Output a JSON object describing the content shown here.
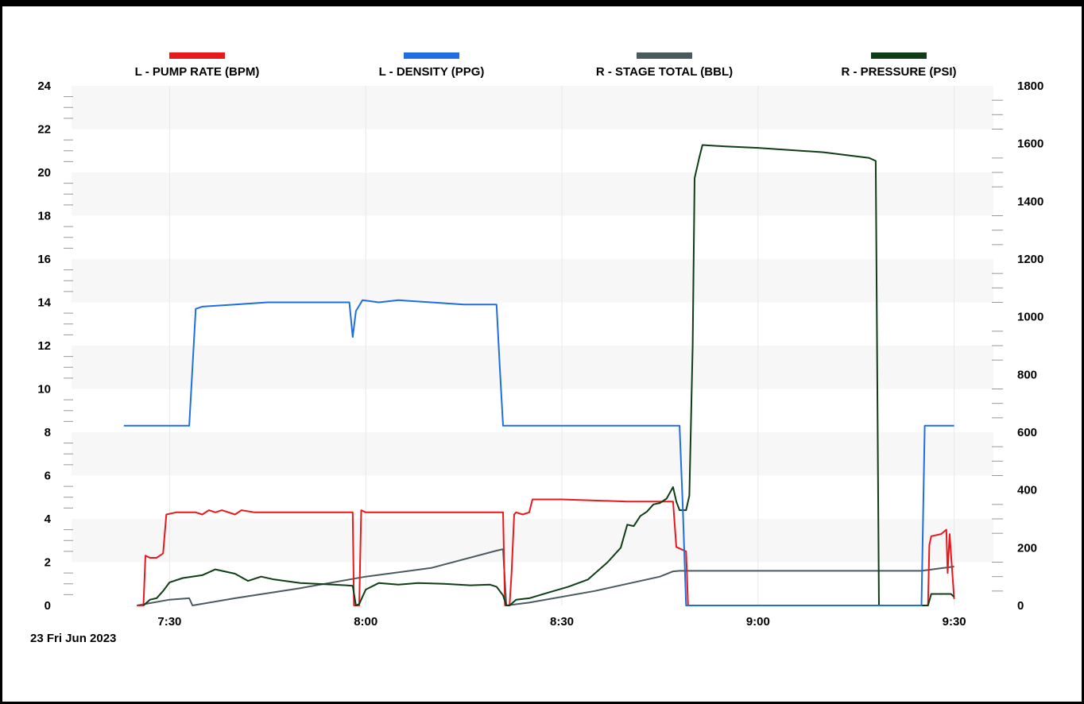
{
  "chart_data": {
    "type": "line",
    "date_label": "23 Fri  Jun 2023",
    "x_range": [
      "07:15",
      "09:36"
    ],
    "x_ticks": [
      {
        "label": "7:30",
        "time": "07:30"
      },
      {
        "label": "8:00",
        "time": "08:00"
      },
      {
        "label": "8:30",
        "time": "08:30"
      },
      {
        "label": "9:00",
        "time": "09:00"
      },
      {
        "label": "9:30",
        "time": "09:30"
      }
    ],
    "y_left": {
      "range": [
        0,
        24
      ],
      "ticks": [
        "0",
        "2",
        "4",
        "6",
        "8",
        "10",
        "12",
        "14",
        "16",
        "18",
        "20",
        "22",
        "24"
      ]
    },
    "y_right": {
      "range": [
        0,
        1800
      ],
      "ticks": [
        "0",
        "200",
        "400",
        "600",
        "800",
        "1000",
        "1200",
        "1400",
        "1600",
        "1800"
      ]
    },
    "legend_position": "top",
    "grid": "horizontal-bands",
    "colors": {
      "band": "#f7f7f7",
      "vgrid": "#e8e8e8",
      "background": "#ffffff"
    },
    "series": [
      {
        "name": "L - PUMP RATE (BPM)",
        "axis": "left",
        "color": "#e8191c",
        "points": [
          [
            "07:25",
            0
          ],
          [
            "07:26",
            0
          ],
          [
            "07:26.3",
            2.3
          ],
          [
            "07:27",
            2.2
          ],
          [
            "07:28",
            2.2
          ],
          [
            "07:29",
            2.4
          ],
          [
            "07:29.5",
            4.2
          ],
          [
            "07:31",
            4.3
          ],
          [
            "07:34",
            4.3
          ],
          [
            "07:35",
            4.2
          ],
          [
            "07:36",
            4.4
          ],
          [
            "07:37",
            4.3
          ],
          [
            "07:38",
            4.4
          ],
          [
            "07:40",
            4.2
          ],
          [
            "07:41",
            4.4
          ],
          [
            "07:43",
            4.3
          ],
          [
            "07:50",
            4.3
          ],
          [
            "07:58",
            4.3
          ],
          [
            "07:58.2",
            0
          ],
          [
            "07:59",
            0
          ],
          [
            "07:59.3",
            4.4
          ],
          [
            "08:00",
            4.3
          ],
          [
            "08:10",
            4.3
          ],
          [
            "08:21",
            4.3
          ],
          [
            "08:21.3",
            0
          ],
          [
            "08:22",
            0
          ],
          [
            "08:22.3",
            1.5
          ],
          [
            "08:22.7",
            4.2
          ],
          [
            "08:23",
            4.3
          ],
          [
            "08:24",
            4.2
          ],
          [
            "08:25",
            4.3
          ],
          [
            "08:25.5",
            4.9
          ],
          [
            "08:30",
            4.9
          ],
          [
            "08:40",
            4.8
          ],
          [
            "08:47",
            4.8
          ],
          [
            "08:47.5",
            2.7
          ],
          [
            "08:49",
            2.5
          ],
          [
            "08:49.3",
            0
          ],
          [
            "08:50",
            0
          ],
          [
            "09:26",
            0
          ],
          [
            "09:26.2",
            2.8
          ],
          [
            "09:26.5",
            3.2
          ],
          [
            "09:28",
            3.3
          ],
          [
            "09:28.8",
            3.5
          ],
          [
            "09:29",
            1.5
          ],
          [
            "09:29.3",
            3.3
          ],
          [
            "09:30",
            0.3
          ]
        ]
      },
      {
        "name": "L - DENSITY (PPG)",
        "axis": "left",
        "color": "#1f6fe0",
        "points": [
          [
            "07:23",
            8.3
          ],
          [
            "07:33",
            8.3
          ],
          [
            "07:33.5",
            11
          ],
          [
            "07:34",
            13.7
          ],
          [
            "07:35",
            13.8
          ],
          [
            "07:40",
            13.9
          ],
          [
            "07:45",
            14
          ],
          [
            "07:55",
            14
          ],
          [
            "07:57.5",
            14
          ],
          [
            "07:58",
            12.4
          ],
          [
            "07:58.5",
            13.6
          ],
          [
            "07:59.5",
            14.1
          ],
          [
            "08:02",
            14
          ],
          [
            "08:05",
            14.1
          ],
          [
            "08:10",
            14
          ],
          [
            "08:15",
            13.9
          ],
          [
            "08:20",
            13.9
          ],
          [
            "08:20.5",
            11
          ],
          [
            "08:21",
            8.3
          ],
          [
            "08:48",
            8.3
          ],
          [
            "08:48.5",
            4.5
          ],
          [
            "08:49",
            0
          ],
          [
            "09:25",
            0
          ],
          [
            "09:25.5",
            8.3
          ],
          [
            "09:30",
            8.3
          ]
        ]
      },
      {
        "name": "R - STAGE TOTAL (BBL)",
        "axis": "right",
        "color": "#4a5a5e",
        "points": [
          [
            "07:25",
            0
          ],
          [
            "07:30",
            20
          ],
          [
            "07:33",
            25
          ],
          [
            "07:33.5",
            0
          ],
          [
            "07:40",
            25
          ],
          [
            "07:50",
            60
          ],
          [
            "08:00",
            100
          ],
          [
            "08:10",
            130
          ],
          [
            "08:20",
            190
          ],
          [
            "08:21",
            195
          ],
          [
            "08:21.5",
            0
          ],
          [
            "08:25",
            10
          ],
          [
            "08:35",
            50
          ],
          [
            "08:45",
            100
          ],
          [
            "08:47",
            118
          ],
          [
            "08:48",
            120
          ],
          [
            "09:00",
            120
          ],
          [
            "09:20",
            120
          ],
          [
            "09:25",
            120
          ],
          [
            "09:30",
            135
          ]
        ]
      },
      {
        "name": "R - PRESSURE (PSI)",
        "axis": "right",
        "color": "#0e3d16",
        "points": [
          [
            "07:26",
            0
          ],
          [
            "07:27",
            20
          ],
          [
            "07:28",
            25
          ],
          [
            "07:29",
            50
          ],
          [
            "07:30",
            80
          ],
          [
            "07:32",
            95
          ],
          [
            "07:35",
            105
          ],
          [
            "07:37",
            125
          ],
          [
            "07:40",
            110
          ],
          [
            "07:42",
            85
          ],
          [
            "07:44",
            100
          ],
          [
            "07:46",
            90
          ],
          [
            "07:50",
            78
          ],
          [
            "07:55",
            72
          ],
          [
            "07:57",
            70
          ],
          [
            "07:58",
            68
          ],
          [
            "07:58.5",
            0
          ],
          [
            "07:59",
            5
          ],
          [
            "08:00",
            55
          ],
          [
            "08:02",
            78
          ],
          [
            "08:05",
            72
          ],
          [
            "08:08",
            78
          ],
          [
            "08:12",
            75
          ],
          [
            "08:16",
            70
          ],
          [
            "08:19",
            72
          ],
          [
            "08:20",
            65
          ],
          [
            "08:21",
            35
          ],
          [
            "08:21.5",
            0
          ],
          [
            "08:22",
            0
          ],
          [
            "08:23",
            20
          ],
          [
            "08:25",
            25
          ],
          [
            "08:28",
            45
          ],
          [
            "08:31",
            65
          ],
          [
            "08:34",
            90
          ],
          [
            "08:37",
            150
          ],
          [
            "08:39",
            200
          ],
          [
            "08:40",
            280
          ],
          [
            "08:41",
            275
          ],
          [
            "08:42",
            310
          ],
          [
            "08:43",
            325
          ],
          [
            "08:44",
            350
          ],
          [
            "08:45",
            355
          ],
          [
            "08:46",
            370
          ],
          [
            "08:47",
            410
          ],
          [
            "08:47.5",
            360
          ],
          [
            "08:48",
            330
          ],
          [
            "08:49",
            330
          ],
          [
            "08:49.5",
            380
          ],
          [
            "08:50",
            900
          ],
          [
            "08:50.3",
            1480
          ],
          [
            "08:51",
            1550
          ],
          [
            "08:51.5",
            1595
          ],
          [
            "08:55",
            1590
          ],
          [
            "09:00",
            1585
          ],
          [
            "09:10",
            1570
          ],
          [
            "09:17",
            1550
          ],
          [
            "09:18",
            1540
          ],
          [
            "09:18.5",
            0
          ],
          [
            "09:25",
            0
          ],
          [
            "09:26",
            0
          ],
          [
            "09:26.5",
            40
          ],
          [
            "09:29",
            40
          ],
          [
            "09:29.5",
            40
          ],
          [
            "09:30",
            30
          ]
        ]
      }
    ]
  }
}
